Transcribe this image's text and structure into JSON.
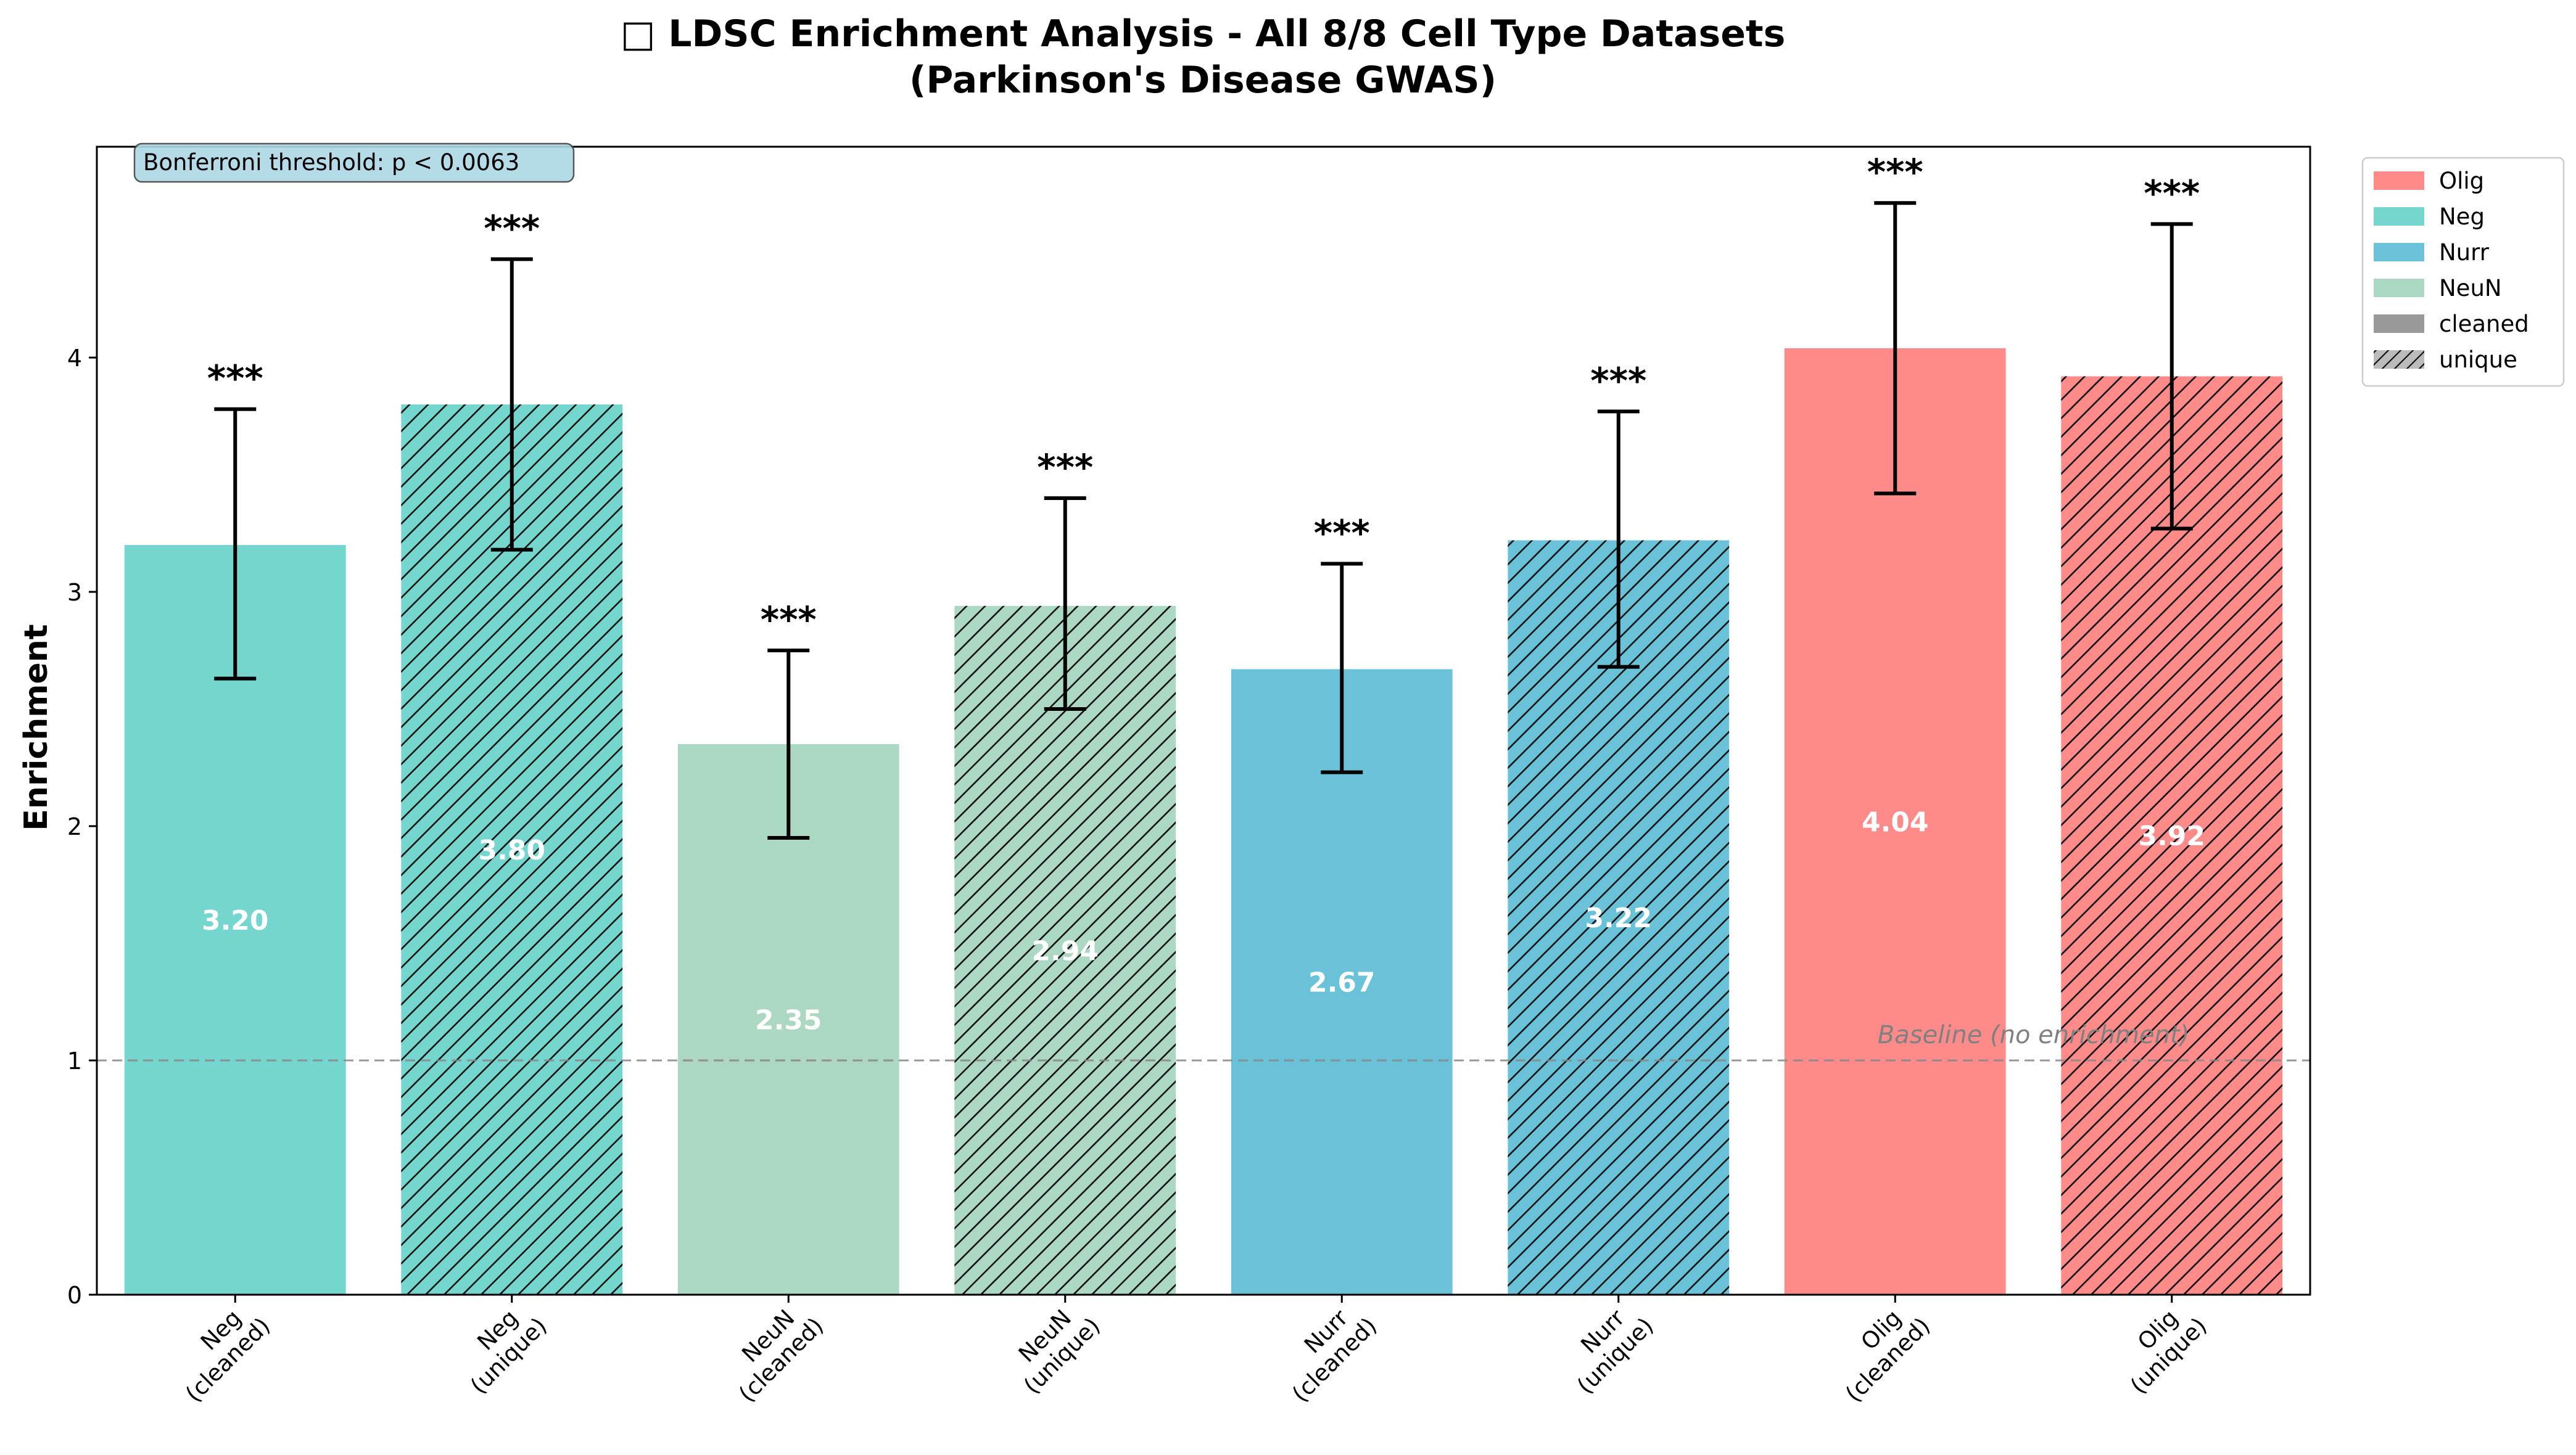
{
  "chart_data": {
    "type": "bar",
    "title_line1": "□ LDSC Enrichment Analysis - All 8/8 Cell Type Datasets",
    "title_line2": "(Parkinson's Disease GWAS)",
    "ylabel": "Enrichment",
    "xlabel": "",
    "ylim": [
      0,
      4.9
    ],
    "yticks": [
      0,
      1,
      2,
      3,
      4
    ],
    "grid": false,
    "legend_position": "outside-top-right",
    "bonferroni_text": "Bonferroni threshold: p < 0.0063",
    "baseline": {
      "value": 1,
      "label": "Baseline (no enrichment)"
    },
    "categories": [
      {
        "line1": "Neg",
        "line2": "(cleaned)"
      },
      {
        "line1": "Neg",
        "line2": "(unique)"
      },
      {
        "line1": "NeuN",
        "line2": "(cleaned)"
      },
      {
        "line1": "NeuN",
        "line2": "(unique)"
      },
      {
        "line1": "Nurr",
        "line2": "(cleaned)"
      },
      {
        "line1": "Nurr",
        "line2": "(unique)"
      },
      {
        "line1": "Olig",
        "line2": "(cleaned)"
      },
      {
        "line1": "Olig",
        "line2": "(unique)"
      }
    ],
    "bars": [
      {
        "cell": "Neg",
        "type": "cleaned",
        "value": 3.2,
        "label": "3.20",
        "err_low": 2.63,
        "err_high": 3.78,
        "sig": "***"
      },
      {
        "cell": "Neg",
        "type": "unique",
        "value": 3.8,
        "label": "3.80",
        "err_low": 3.18,
        "err_high": 4.42,
        "sig": "***"
      },
      {
        "cell": "NeuN",
        "type": "cleaned",
        "value": 2.35,
        "label": "2.35",
        "err_low": 1.95,
        "err_high": 2.75,
        "sig": "***"
      },
      {
        "cell": "NeuN",
        "type": "unique",
        "value": 2.94,
        "label": "2.94",
        "err_low": 2.5,
        "err_high": 3.4,
        "sig": "***"
      },
      {
        "cell": "Nurr",
        "type": "cleaned",
        "value": 2.67,
        "label": "2.67",
        "err_low": 2.23,
        "err_high": 3.12,
        "sig": "***"
      },
      {
        "cell": "Nurr",
        "type": "unique",
        "value": 3.22,
        "label": "3.22",
        "err_low": 2.68,
        "err_high": 3.77,
        "sig": "***"
      },
      {
        "cell": "Olig",
        "type": "cleaned",
        "value": 4.04,
        "label": "4.04",
        "err_low": 3.42,
        "err_high": 4.66,
        "sig": "***"
      },
      {
        "cell": "Olig",
        "type": "unique",
        "value": 3.92,
        "label": "3.92",
        "err_low": 3.27,
        "err_high": 4.57,
        "sig": "***"
      }
    ],
    "colors": {
      "Olig": "#ff8a8a",
      "Neg": "#75d6cf",
      "Nurr": "#6ac2d8",
      "NeuN": "#acd7c2",
      "cleaned": "#999999",
      "unique": "#bbbbbb"
    },
    "legend": [
      {
        "label": "Olig",
        "color_key": "Olig",
        "hatch": false
      },
      {
        "label": "Neg",
        "color_key": "Neg",
        "hatch": false
      },
      {
        "label": "Nurr",
        "color_key": "Nurr",
        "hatch": false
      },
      {
        "label": "NeuN",
        "color_key": "NeuN",
        "hatch": false
      },
      {
        "label": "cleaned",
        "color_key": "cleaned",
        "hatch": false
      },
      {
        "label": "unique",
        "color_key": "unique",
        "hatch": true
      }
    ]
  }
}
